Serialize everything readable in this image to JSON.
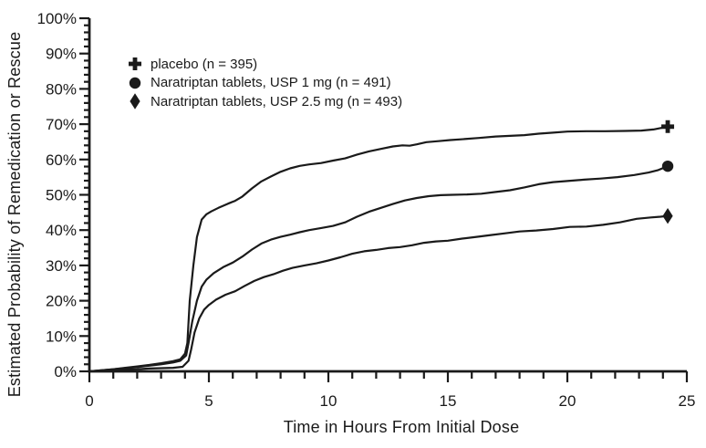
{
  "figure": {
    "background": "#ffffff",
    "ink": "#1a1a1a"
  },
  "chart_data": {
    "type": "line",
    "xlabel": "Time in Hours From Initial Dose",
    "ylabel": "Estimated Probability of Remedication or Rescue",
    "xlim": [
      0,
      25
    ],
    "ylim": [
      0,
      100
    ],
    "grid": "off",
    "legend_position": "top-left-inside",
    "x_minor_step": 1,
    "y_minor_step": 2,
    "x_ticks": [
      {
        "value": 0,
        "label": "0"
      },
      {
        "value": 5,
        "label": "5"
      },
      {
        "value": 10,
        "label": "10"
      },
      {
        "value": 15,
        "label": "15"
      },
      {
        "value": 20,
        "label": "20"
      },
      {
        "value": 25,
        "label": "25"
      }
    ],
    "y_ticks": [
      {
        "value": 0,
        "label": "0%"
      },
      {
        "value": 10,
        "label": "10%"
      },
      {
        "value": 20,
        "label": "20%"
      },
      {
        "value": 30,
        "label": "30%"
      },
      {
        "value": 40,
        "label": "40%"
      },
      {
        "value": 50,
        "label": "50%"
      },
      {
        "value": 60,
        "label": "60%"
      },
      {
        "value": 70,
        "label": "70%"
      },
      {
        "value": 80,
        "label": "80%"
      },
      {
        "value": 90,
        "label": "90%"
      },
      {
        "value": 100,
        "label": "100%"
      }
    ],
    "series": [
      {
        "id": "placebo",
        "name": "placebo (n = 395)",
        "marker": "plus",
        "final_value_pct": 69,
        "x": [
          0,
          0.5,
          1,
          1.5,
          2,
          2.5,
          3,
          3.5,
          3.8,
          4.0,
          4.1,
          4.2,
          4.35,
          4.5,
          4.7,
          4.9,
          5.1,
          5.4,
          5.8,
          6.1,
          6.4,
          6.8,
          7.2,
          7.6,
          8.0,
          8.4,
          8.8,
          9.2,
          9.7,
          10.2,
          10.7,
          11.2,
          11.7,
          12.2,
          12.7,
          13.1,
          13.4,
          13.7,
          14.1,
          14.6,
          15.1,
          15.7,
          16.3,
          17.0,
          17.6,
          18.2,
          18.8,
          19.4,
          20.0,
          20.8,
          21.6,
          22.4,
          23.1,
          23.6,
          24.2
        ],
        "y": [
          0,
          0.3,
          0.6,
          1.0,
          1.4,
          1.8,
          2.3,
          2.9,
          3.4,
          5.0,
          8.0,
          20,
          30,
          38,
          43,
          44.5,
          45.3,
          46.3,
          47.5,
          48.3,
          49.5,
          51.8,
          53.8,
          55.2,
          56.5,
          57.5,
          58.2,
          58.6,
          59.0,
          59.7,
          60.3,
          61.4,
          62.3,
          63.0,
          63.7,
          64.0,
          63.9,
          64.3,
          64.9,
          65.2,
          65.5,
          65.8,
          66.1,
          66.5,
          66.7,
          66.9,
          67.3,
          67.6,
          67.9,
          68.0,
          68.0,
          68.1,
          68.2,
          68.5,
          69.3
        ]
      },
      {
        "id": "naratriptan-1mg",
        "name": "Naratriptan tablets, USP 1 mg (n = 491)",
        "marker": "circle",
        "final_value_pct": 58,
        "x": [
          0,
          0.5,
          1,
          1.5,
          2,
          2.5,
          3,
          3.5,
          3.8,
          4.05,
          4.15,
          4.3,
          4.5,
          4.7,
          4.9,
          5.2,
          5.6,
          6.0,
          6.4,
          6.8,
          7.2,
          7.6,
          8.0,
          8.4,
          8.8,
          9.2,
          9.7,
          10.2,
          10.7,
          11.2,
          11.7,
          12.2,
          12.7,
          13.2,
          13.7,
          14.2,
          14.7,
          15.2,
          15.8,
          16.4,
          17.0,
          17.6,
          18.2,
          18.8,
          19.4,
          20.0,
          20.7,
          21.4,
          22.1,
          22.8,
          23.4,
          23.8,
          24.2
        ],
        "y": [
          0,
          0.3,
          0.6,
          0.9,
          1.2,
          1.6,
          2.0,
          2.5,
          3.0,
          4.5,
          8,
          14,
          20,
          24,
          26,
          27.8,
          29.5,
          30.8,
          32.5,
          34.5,
          36.2,
          37.3,
          38.1,
          38.7,
          39.4,
          40.0,
          40.6,
          41.2,
          42.2,
          43.8,
          45.2,
          46.3,
          47.4,
          48.4,
          49.1,
          49.6,
          49.9,
          50.0,
          50.1,
          50.3,
          50.8,
          51.3,
          52.1,
          53.0,
          53.6,
          53.9,
          54.3,
          54.6,
          55.0,
          55.6,
          56.3,
          57.0,
          58.1
        ]
      },
      {
        "id": "naratriptan-2-5mg",
        "name": "Naratriptan tablets, USP 2.5 mg (n = 493)",
        "marker": "diamond",
        "final_value_pct": 44,
        "x": [
          0,
          0.5,
          1,
          1.5,
          2,
          2.5,
          3,
          3.5,
          3.9,
          4.15,
          4.25,
          4.4,
          4.6,
          4.8,
          5.0,
          5.3,
          5.7,
          6.1,
          6.5,
          6.9,
          7.3,
          7.7,
          8.1,
          8.5,
          9.0,
          9.5,
          10.0,
          10.5,
          11.0,
          11.5,
          12.0,
          12.5,
          13.0,
          13.5,
          14.0,
          14.5,
          15.0,
          15.6,
          16.2,
          16.8,
          17.4,
          18.0,
          18.7,
          19.4,
          20.1,
          20.8,
          21.5,
          22.2,
          22.9,
          23.5,
          23.9,
          24.2
        ],
        "y": [
          0,
          0.2,
          0.3,
          0.5,
          0.6,
          0.8,
          0.9,
          1.0,
          1.3,
          3.0,
          6,
          11,
          15,
          17.5,
          18.8,
          20.3,
          21.7,
          22.7,
          24.2,
          25.6,
          26.7,
          27.5,
          28.5,
          29.3,
          30.0,
          30.6,
          31.4,
          32.3,
          33.3,
          34.0,
          34.4,
          34.9,
          35.2,
          35.7,
          36.4,
          36.8,
          37.0,
          37.6,
          38.1,
          38.6,
          39.1,
          39.6,
          39.9,
          40.3,
          40.9,
          41.0,
          41.5,
          42.2,
          43.2,
          43.6,
          43.8,
          44.0
        ]
      }
    ]
  }
}
